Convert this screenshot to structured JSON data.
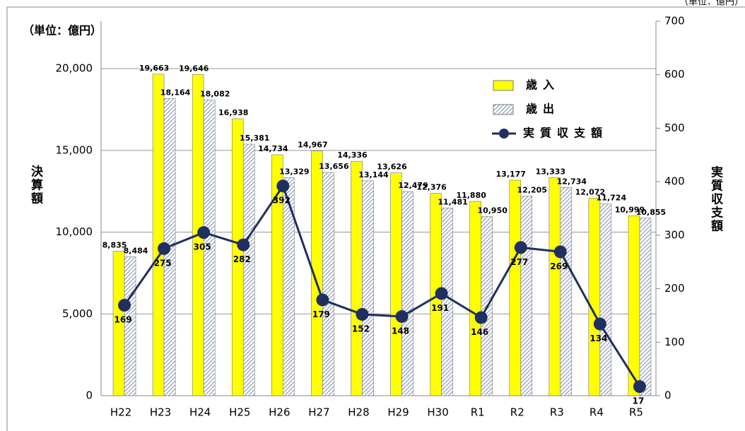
{
  "chart_data": {
    "type": "bar-line",
    "unit_label": "（単位：億円）",
    "unit_note": "（単位：億円）",
    "ylabel": "決算額",
    "y2label": "実質収支額",
    "categories": [
      "H22",
      "H23",
      "H24",
      "H25",
      "H26",
      "H27",
      "H28",
      "H29",
      "H30",
      "R1",
      "R2",
      "R3",
      "R4",
      "R5"
    ],
    "series": [
      {
        "name": "歳入",
        "type": "bar",
        "color": "#ffff00",
        "values": [
          8835,
          19663,
          19646,
          16938,
          14734,
          14967,
          14336,
          13626,
          12376,
          11880,
          13177,
          13333,
          12072,
          10999
        ],
        "value_labels": [
          "8,835",
          "19,663",
          "19,646",
          "16,938",
          "14,734",
          "14,967",
          "14,336",
          "13,626",
          "12,376",
          "11,880",
          "13,177",
          "13,333",
          "12,072",
          "10,999"
        ]
      },
      {
        "name": "歳出",
        "type": "hatched-bar",
        "color": "#8796b8",
        "values": [
          8484,
          18164,
          18082,
          15381,
          13329,
          13656,
          13144,
          12479,
          11481,
          10950,
          12205,
          12734,
          11724,
          10855
        ],
        "value_labels": [
          "8,484",
          "18,164",
          "18,082",
          "15,381",
          "13,329",
          "13,656",
          "13,144",
          "12,479",
          "11,481",
          "10,950",
          "12,205",
          "12,734",
          "11,724",
          "10,855"
        ]
      },
      {
        "name": "実質収支額",
        "type": "line",
        "axis": "y2",
        "color": "#1f2f5f",
        "values": [
          169,
          275,
          305,
          282,
          392,
          179,
          152,
          148,
          191,
          146,
          277,
          269,
          134,
          17
        ]
      }
    ],
    "ylim": [
      0,
      22900
    ],
    "yticks": [
      0,
      {
        "value": 5000,
        "label": "5,000"
      },
      {
        "value": 10000,
        "label": "10,000"
      },
      {
        "value": 15000,
        "label": "15,000"
      },
      {
        "value": 20000,
        "label": "20,000"
      }
    ],
    "y2lim": [
      0,
      700
    ],
    "y2ticks": [
      0,
      100,
      200,
      300,
      400,
      500,
      600,
      700
    ],
    "grid": true
  }
}
